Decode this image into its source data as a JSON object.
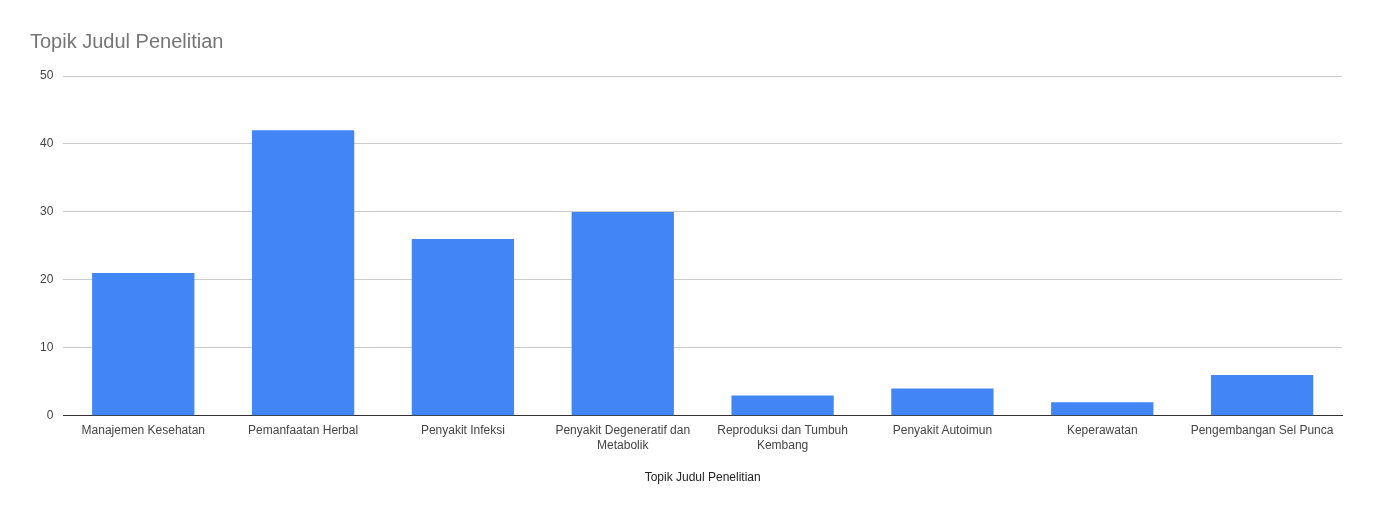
{
  "chart_data": {
    "type": "bar",
    "title": "Topik Judul Penelitian",
    "xlabel": "Topik Judul Penelitian",
    "categories": [
      "Manajemen Kesehatan",
      "Pemanfaatan Herbal",
      "Penyakit Infeksi",
      "Penyakit Degeneratif dan Metabolik",
      "Reproduksi dan Tumbuh Kembang",
      "Penyakit Autoimun",
      "Keperawatan",
      "Pengembangan Sel Punca"
    ],
    "values": [
      21,
      42,
      26,
      30,
      3,
      4,
      2,
      6
    ],
    "color": "#4285f4",
    "ylim": [
      0,
      50
    ],
    "yticks": [
      0,
      10,
      20,
      30,
      40,
      50
    ],
    "grid": "y",
    "legend": false
  }
}
